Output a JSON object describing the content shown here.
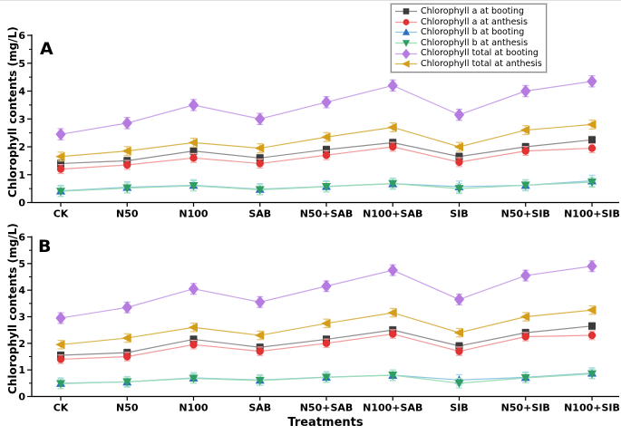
{
  "figure": {
    "panel_a_label": "A",
    "panel_b_label": "B",
    "y_axis_label": "Chlorophyll contents (mg/L)",
    "x_axis_label": "Treatments"
  },
  "legend": {
    "position": "top-right"
  },
  "chart_data": [
    {
      "type": "line",
      "panel": "A",
      "title": "",
      "xlabel": "Treatments",
      "ylabel": "Chlorophyll contents (mg/L)",
      "categories": [
        "CK",
        "N50",
        "N100",
        "SAB",
        "N50+SAB",
        "N100+SAB",
        "SIB",
        "N50+SIB",
        "N100+SIB"
      ],
      "ylim": [
        0,
        6
      ],
      "ytick_step": 1,
      "yminor_step": 0.5,
      "grid": false,
      "legend_position": "top-right",
      "series": [
        {
          "name": "Chlorophyll a at booting",
          "marker": "square",
          "color": "#3b3b3b",
          "line_color": "#8f8f8f",
          "error_color": "#b3b3b3",
          "error": 0.13,
          "values": [
            1.4,
            1.5,
            1.85,
            1.6,
            1.9,
            2.15,
            1.65,
            2.0,
            2.25
          ]
        },
        {
          "name": "Chlorophyll a at anthesis",
          "marker": "circle",
          "color": "#e23333",
          "line_color": "#f29b9b",
          "error_color": "#f5a9a9",
          "error": 0.16,
          "values": [
            1.2,
            1.35,
            1.6,
            1.4,
            1.7,
            2.0,
            1.45,
            1.85,
            1.95
          ]
        },
        {
          "name": "Chlorophyll b at booting",
          "marker": "triangle-up",
          "color": "#2d6fc4",
          "line_color": "#8ec6e4",
          "error_color": "#a6d8ee",
          "error": 0.2,
          "values": [
            0.42,
            0.55,
            0.62,
            0.48,
            0.58,
            0.68,
            0.57,
            0.62,
            0.78
          ]
        },
        {
          "name": "Chlorophyll b at anthesis",
          "marker": "triangle-down",
          "color": "#2f9e63",
          "line_color": "#9ddcb5",
          "error_color": "#a8e2c2",
          "error": 0.18,
          "values": [
            0.4,
            0.52,
            0.6,
            0.46,
            0.57,
            0.68,
            0.5,
            0.62,
            0.73
          ]
        },
        {
          "name": "Chlorophyll total at booting",
          "marker": "diamond",
          "color": "#b57be0",
          "line_color": "#c9a3ea",
          "error_color": "#cfa9ee",
          "error": 0.2,
          "values": [
            2.45,
            2.85,
            3.5,
            3.0,
            3.6,
            4.2,
            3.15,
            4.0,
            4.35
          ]
        },
        {
          "name": "Chlorophyll total at anthesis",
          "marker": "triangle-left",
          "color": "#d49e1a",
          "line_color": "#dab54f",
          "error_color": "#e6c46d",
          "error": 0.16,
          "values": [
            1.65,
            1.85,
            2.15,
            1.95,
            2.35,
            2.7,
            2.0,
            2.6,
            2.8
          ]
        }
      ]
    },
    {
      "type": "line",
      "panel": "B",
      "title": "",
      "xlabel": "Treatments",
      "ylabel": "Chlorophyll contents (mg/L)",
      "categories": [
        "CK",
        "N50",
        "N100",
        "SAB",
        "N50+SAB",
        "N100+SAB",
        "SIB",
        "N50+SIB",
        "N100+SIB"
      ],
      "ylim": [
        0,
        6
      ],
      "ytick_step": 1,
      "yminor_step": 0.5,
      "grid": false,
      "legend_position": "none",
      "series": [
        {
          "name": "Chlorophyll a at booting",
          "marker": "square",
          "color": "#3b3b3b",
          "line_color": "#8f8f8f",
          "error_color": "#b3b3b3",
          "error": 0.13,
          "values": [
            1.55,
            1.65,
            2.15,
            1.85,
            2.15,
            2.5,
            1.9,
            2.4,
            2.65
          ]
        },
        {
          "name": "Chlorophyll a at anthesis",
          "marker": "circle",
          "color": "#e23333",
          "line_color": "#f29b9b",
          "error_color": "#f5a9a9",
          "error": 0.16,
          "values": [
            1.4,
            1.5,
            1.95,
            1.7,
            2.0,
            2.35,
            1.7,
            2.25,
            2.3
          ]
        },
        {
          "name": "Chlorophyll b at booting",
          "marker": "triangle-up",
          "color": "#2d6fc4",
          "line_color": "#8ec6e4",
          "error_color": "#a6d8ee",
          "error": 0.2,
          "values": [
            0.5,
            0.55,
            0.7,
            0.62,
            0.73,
            0.8,
            0.62,
            0.72,
            0.88
          ]
        },
        {
          "name": "Chlorophyll b at anthesis",
          "marker": "triangle-down",
          "color": "#2f9e63",
          "line_color": "#9ddcb5",
          "error_color": "#a8e2c2",
          "error": 0.18,
          "values": [
            0.48,
            0.55,
            0.68,
            0.6,
            0.72,
            0.8,
            0.5,
            0.7,
            0.85
          ]
        },
        {
          "name": "Chlorophyll total at booting",
          "marker": "diamond",
          "color": "#b57be0",
          "line_color": "#c9a3ea",
          "error_color": "#cfa9ee",
          "error": 0.2,
          "values": [
            2.95,
            3.35,
            4.05,
            3.55,
            4.15,
            4.75,
            3.65,
            4.55,
            4.9
          ]
        },
        {
          "name": "Chlorophyll total at anthesis",
          "marker": "triangle-left",
          "color": "#d49e1a",
          "line_color": "#dab54f",
          "error_color": "#e6c46d",
          "error": 0.16,
          "values": [
            1.95,
            2.2,
            2.6,
            2.3,
            2.75,
            3.15,
            2.4,
            3.0,
            3.25
          ]
        }
      ]
    }
  ]
}
